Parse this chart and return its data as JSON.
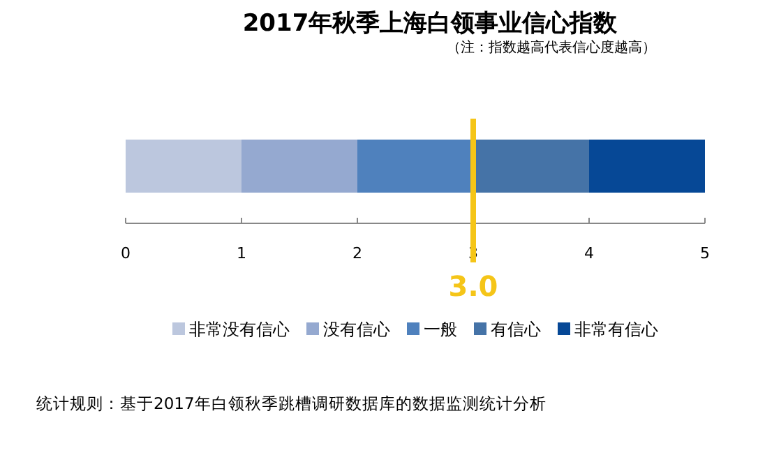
{
  "chart_data": {
    "type": "bar",
    "orientation": "horizontal",
    "stacked": true,
    "title": "2017年秋季上海白领事业信心指数",
    "subtitle": "（注：指数越高代表信心度越高）",
    "categories": [
      null
    ],
    "series": [
      {
        "name": "非常没有信心",
        "color": "#bcc7de",
        "values": [
          1
        ]
      },
      {
        "name": "没有信心",
        "color": "#95a9d0",
        "values": [
          1
        ]
      },
      {
        "name": "一般",
        "color": "#4f81bd",
        "values": [
          1
        ]
      },
      {
        "name": "有信心",
        "color": "#4573a7",
        "values": [
          1
        ]
      },
      {
        "name": "非常有信心",
        "color": "#064896",
        "values": [
          1
        ]
      }
    ],
    "xlim": [
      0,
      5
    ],
    "xticks": [
      0,
      1,
      2,
      3,
      4,
      5
    ],
    "grid": false,
    "legend": "bottom",
    "ref_lines": [
      {
        "axis": "x",
        "value": 3.0,
        "label": "3.0",
        "color": "#f5c518"
      }
    ],
    "annotations": [
      "统计规则：基于2017年白领秋季跳槽调研数据库的数据监测统计分析"
    ]
  }
}
